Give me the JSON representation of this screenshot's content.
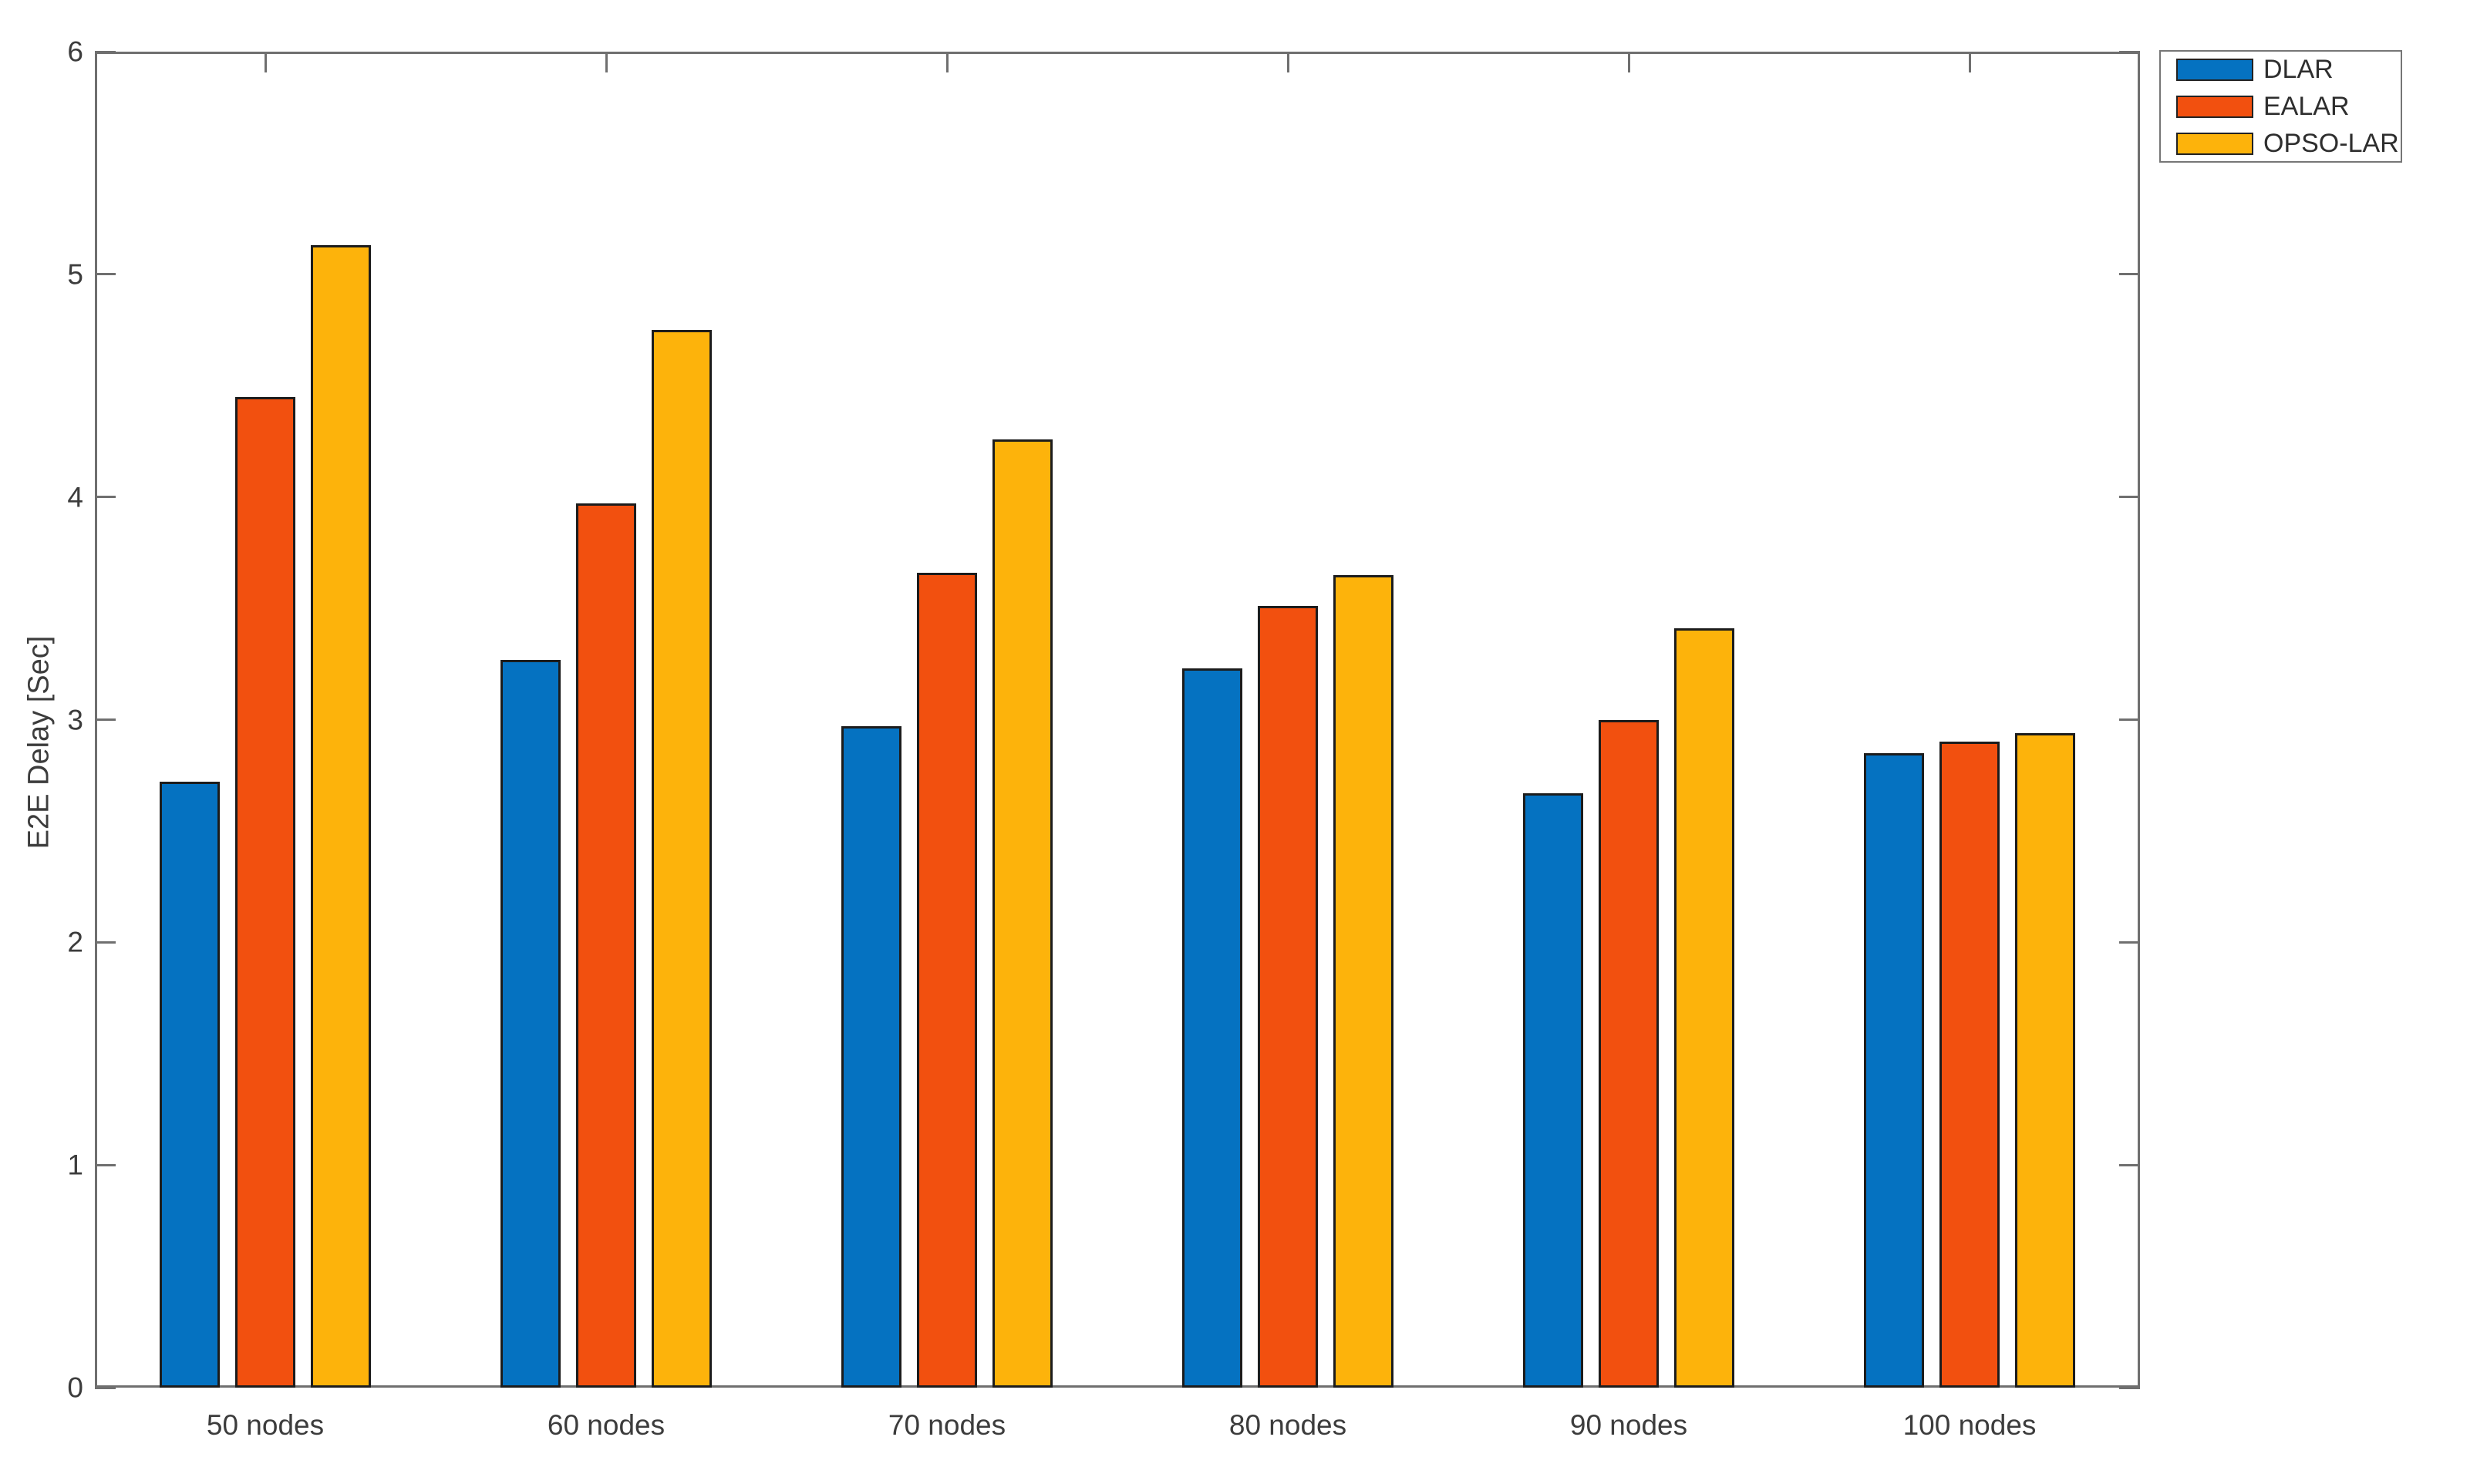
{
  "chart_data": {
    "type": "bar",
    "title": "",
    "xlabel": "",
    "ylabel": "E2E Delay [Sec]",
    "ylim": [
      0,
      6
    ],
    "yticks": [
      0,
      1,
      2,
      3,
      4,
      5,
      6
    ],
    "grid": false,
    "legend_position": "top-right-outside",
    "categories": [
      "50 nodes",
      "60 nodes",
      "70 nodes",
      "80 nodes",
      "90 nodes",
      "100 nodes"
    ],
    "series": [
      {
        "name": "DLAR",
        "color": "#0572c1",
        "values": [
          2.72,
          3.27,
          2.97,
          3.23,
          2.67,
          2.85
        ]
      },
      {
        "name": "EALAR",
        "color": "#f2500f",
        "values": [
          4.45,
          3.97,
          3.66,
          3.51,
          3.0,
          2.9
        ]
      },
      {
        "name": "OPSO-LAR",
        "color": "#fdb30b",
        "values": [
          5.13,
          4.75,
          4.26,
          3.65,
          3.41,
          2.94
        ]
      }
    ],
    "bar_edge_color": "#1c1c1c",
    "axis_color": "#6f6f6f",
    "text_color": "#3c3c3c"
  }
}
